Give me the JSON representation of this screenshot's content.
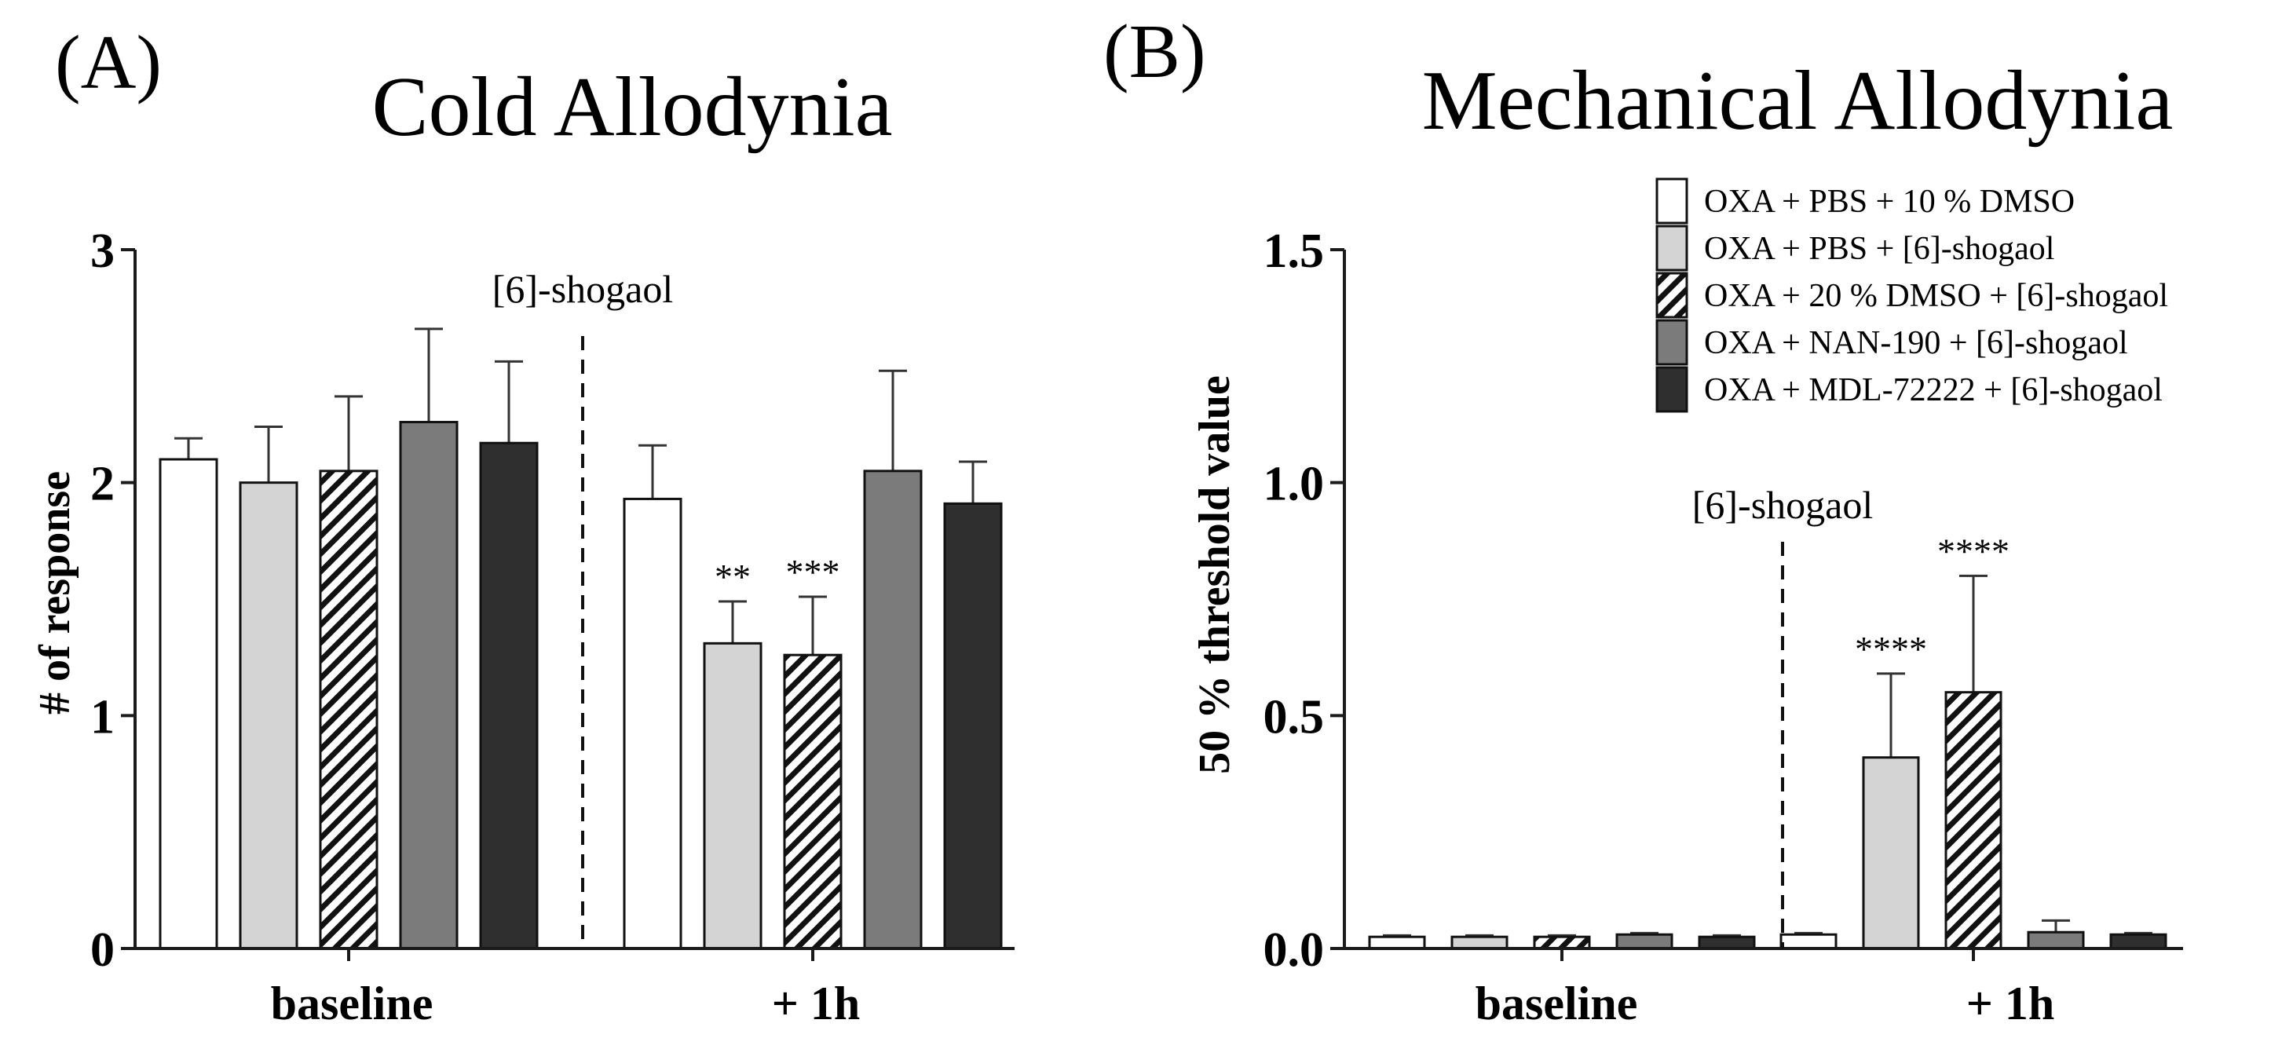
{
  "styles": {
    "colors": {
      "white": "#ffffff",
      "lightgray": "#d4d4d4",
      "hatch": "#ffffff",
      "midgray": "#7b7b7b",
      "dark": "#2f2f2f",
      "axis": "#1a1a1a"
    }
  },
  "legend": {
    "items": [
      {
        "label": "OXA + PBS + 10 % DMSO",
        "style": "white"
      },
      {
        "label": "OXA + PBS + [6]-shogaol",
        "style": "lightgray"
      },
      {
        "label": "OXA + 20 % DMSO + [6]-shogaol",
        "style": "hatch"
      },
      {
        "label": "OXA + NAN-190 + [6]-shogaol",
        "style": "midgray"
      },
      {
        "label": "OXA + MDL-72222 + [6]-shogaol",
        "style": "dark"
      }
    ]
  },
  "chart_data": [
    {
      "panel_label": "(A)",
      "type": "bar",
      "title": "Cold Allodynia",
      "ylabel": "# of response",
      "xlabel": "",
      "ylim": [
        0,
        3
      ],
      "yticks": [
        "0",
        "1",
        "2",
        "3"
      ],
      "ytick_values": [
        0,
        1,
        2,
        3
      ],
      "categories": [
        "baseline",
        "+ 1h"
      ],
      "divider_label": "[6]-shogaol",
      "series": [
        {
          "name": "OXA + PBS + 10 % DMSO",
          "style": "white",
          "values": [
            2.1,
            1.93
          ],
          "errors": [
            0.09,
            0.23
          ],
          "significance": [
            "",
            ""
          ]
        },
        {
          "name": "OXA + PBS + [6]-shogaol",
          "style": "lightgray",
          "values": [
            2.0,
            1.31
          ],
          "errors": [
            0.24,
            0.18
          ],
          "significance": [
            "",
            "**"
          ]
        },
        {
          "name": "OXA + 20 % DMSO + [6]-shogaol",
          "style": "hatch",
          "values": [
            2.05,
            1.26
          ],
          "errors": [
            0.32,
            0.25
          ],
          "significance": [
            "",
            "***"
          ]
        },
        {
          "name": "OXA + NAN-190 + [6]-shogaol",
          "style": "midgray",
          "values": [
            2.26,
            2.05
          ],
          "errors": [
            0.4,
            0.43
          ],
          "significance": [
            "",
            ""
          ]
        },
        {
          "name": "OXA + MDL-72222 + [6]-shogaol",
          "style": "dark",
          "values": [
            2.17,
            1.91
          ],
          "errors": [
            0.35,
            0.18
          ],
          "significance": [
            "",
            ""
          ]
        }
      ]
    },
    {
      "panel_label": "(B)",
      "type": "bar",
      "title": "Mechanical Allodynia",
      "ylabel": "50 % threshold value",
      "xlabel": "",
      "ylim": [
        0,
        1.5
      ],
      "yticks": [
        "0.0",
        "0.5",
        "1.0",
        "1.5"
      ],
      "ytick_values": [
        0,
        0.5,
        1.0,
        1.5
      ],
      "categories": [
        "baseline",
        "+ 1h"
      ],
      "divider_label": "[6]-shogaol",
      "series": [
        {
          "name": "OXA + PBS + 10 % DMSO",
          "style": "white",
          "values": [
            0.025,
            0.03
          ],
          "errors": [
            0.003,
            0.003
          ],
          "significance": [
            "",
            ""
          ]
        },
        {
          "name": "OXA + PBS + [6]-shogaol",
          "style": "lightgray",
          "values": [
            0.025,
            0.41
          ],
          "errors": [
            0.003,
            0.18
          ],
          "significance": [
            "",
            "****"
          ]
        },
        {
          "name": "OXA + 20 % DMSO + [6]-shogaol",
          "style": "hatch",
          "values": [
            0.025,
            0.55
          ],
          "errors": [
            0.003,
            0.25
          ],
          "significance": [
            "",
            "****"
          ]
        },
        {
          "name": "OXA + NAN-190 + [6]-shogaol",
          "style": "midgray",
          "values": [
            0.03,
            0.035
          ],
          "errors": [
            0.003,
            0.025
          ],
          "significance": [
            "",
            ""
          ]
        },
        {
          "name": "OXA + MDL-72222 + [6]-shogaol",
          "style": "dark",
          "values": [
            0.025,
            0.03
          ],
          "errors": [
            0.003,
            0.003
          ],
          "significance": [
            "",
            ""
          ]
        }
      ]
    }
  ]
}
